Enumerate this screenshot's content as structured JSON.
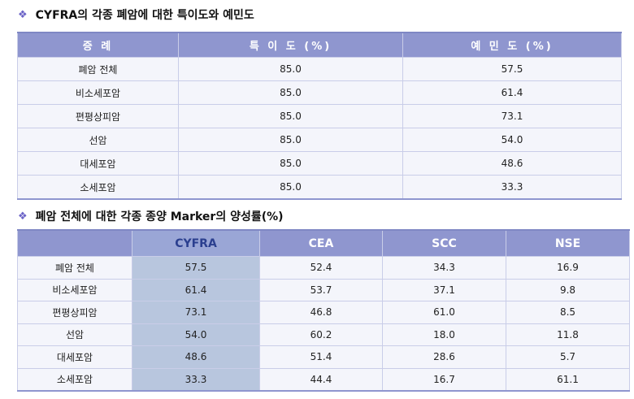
{
  "section1": {
    "bullet": "❖",
    "title": "CYFRA의 각종 폐암에 대한 특이도와 예민도",
    "headers": [
      "증  례",
      "특 이 도 (%)",
      "예 민 도 (%)"
    ],
    "rows": [
      [
        "폐암 전체",
        "85.0",
        "57.5"
      ],
      [
        "비소세포암",
        "85.0",
        "61.4"
      ],
      [
        "편평상피암",
        "85.0",
        "73.1"
      ],
      [
        "선암",
        "85.0",
        "54.0"
      ],
      [
        "대세포암",
        "85.0",
        "48.6"
      ],
      [
        "소세포암",
        "85.0",
        "33.3"
      ]
    ]
  },
  "section2": {
    "bullet": "❖",
    "title": "폐암 전체에 대한 각종 종양 Marker의 양성률(%)",
    "headers": [
      "",
      "CYFRA",
      "CEA",
      "SCC",
      "NSE"
    ],
    "rows": [
      [
        "폐암 전체",
        "57.5",
        "52.4",
        "34.3",
        "16.9"
      ],
      [
        "비소세포암",
        "61.4",
        "53.7",
        "37.1",
        "9.8"
      ],
      [
        "편평상피암",
        "73.1",
        "46.8",
        "61.0",
        "8.5"
      ],
      [
        "선암",
        "54.0",
        "60.2",
        "18.0",
        "11.8"
      ],
      [
        "대세포암",
        "48.6",
        "51.4",
        "28.6",
        "5.7"
      ],
      [
        "소세포암",
        "33.3",
        "44.4",
        "16.7",
        "61.1"
      ]
    ]
  },
  "colors": {
    "header_bg": "#8f96cf",
    "cyfra_column_bg": "#b8c6de",
    "cyfra_header_text": "#2b3f8f",
    "bullet": "#6b63c7"
  }
}
